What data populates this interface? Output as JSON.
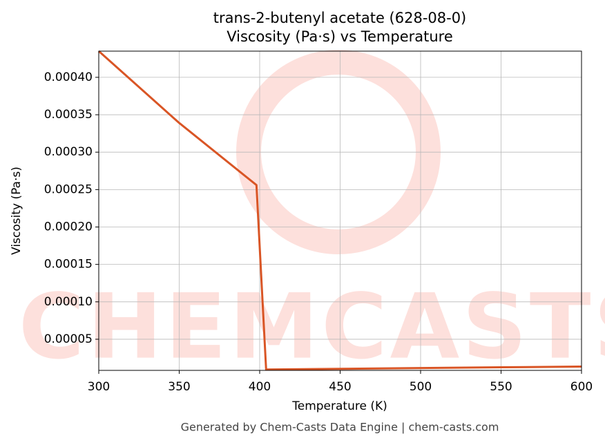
{
  "chart_data": {
    "type": "line",
    "title": "trans-2-butenyl acetate (628-08-0)",
    "subtitle": "Viscosity (Pa·s) vs Temperature",
    "xlabel": "Temperature (K)",
    "ylabel": "Viscosity (Pa·s)",
    "footer": "Generated by Chem-Casts Data Engine | chem-casts.com",
    "watermark": "CHEMCASTS",
    "x": [
      300,
      350,
      398,
      404,
      450,
      500,
      550,
      600
    ],
    "series": [
      {
        "name": "Viscosity",
        "color": "#d95525",
        "values": [
          0.000435,
          0.000339,
          0.000256,
          9.5e-06,
          1.05e-05,
          1.15e-05,
          1.25e-05,
          1.35e-05
        ]
      }
    ],
    "xlim": [
      300,
      600
    ],
    "ylim": [
      8.4e-06,
      0.000435
    ],
    "xticks": [
      300,
      350,
      400,
      450,
      500,
      550,
      600
    ],
    "yticks": [
      {
        "value": 5e-05,
        "label": "0.00005"
      },
      {
        "value": 0.0001,
        "label": "0.00010"
      },
      {
        "value": 0.00015,
        "label": "0.00015"
      },
      {
        "value": 0.0002,
        "label": "0.00020"
      },
      {
        "value": 0.00025,
        "label": "0.00025"
      },
      {
        "value": 0.0003,
        "label": "0.00030"
      },
      {
        "value": 0.00035,
        "label": "0.00035"
      },
      {
        "value": 0.0004,
        "label": "0.00040"
      }
    ],
    "grid": true
  }
}
